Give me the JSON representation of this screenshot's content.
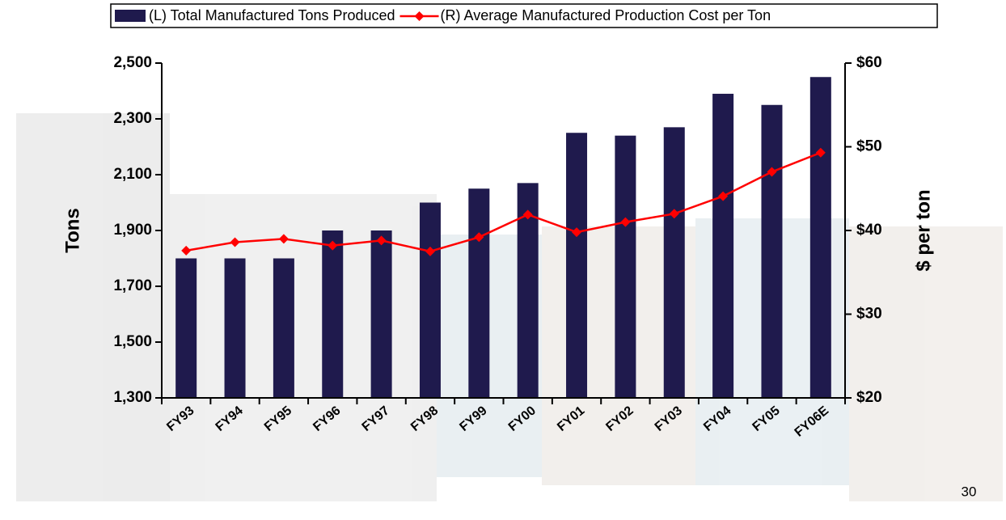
{
  "chart_data": {
    "type": "bar",
    "categories": [
      "FY93",
      "FY94",
      "FY95",
      "FY96",
      "FY97",
      "FY98",
      "FY99",
      "FY00",
      "FY01",
      "FY02",
      "FY03",
      "FY04",
      "FY05",
      "FY06E"
    ],
    "series": [
      {
        "name": "(L) Total Manufactured Tons Produced",
        "type": "bar",
        "color": "#1f1a4d",
        "values": [
          1800,
          1800,
          1800,
          1900,
          1900,
          2000,
          2050,
          2070,
          2250,
          2240,
          2270,
          2390,
          2350,
          2450
        ]
      },
      {
        "name": "(R) Average Manufactured Production Cost per Ton",
        "type": "line",
        "axis": "y2",
        "color": "#ff0000",
        "values": [
          37.6,
          38.6,
          39.0,
          38.2,
          38.8,
          37.5,
          39.2,
          41.9,
          39.8,
          41.0,
          42.0,
          44.1,
          47.0,
          49.3
        ]
      }
    ],
    "ylabel": "Tons",
    "y2label": "$ per ton",
    "ylim": [
      1300,
      2500
    ],
    "yticks": [
      {
        "value": 1300,
        "label": "1,300"
      },
      {
        "value": 1500,
        "label": "1,500"
      },
      {
        "value": 1700,
        "label": "1,700"
      },
      {
        "value": 1900,
        "label": "1,900"
      },
      {
        "value": 2100,
        "label": "2,100"
      },
      {
        "value": 2300,
        "label": "2,300"
      },
      {
        "value": 2500,
        "label": "2,500"
      }
    ],
    "y2lim": [
      20,
      60
    ],
    "y2ticks": [
      {
        "value": 20,
        "label": "$20"
      },
      {
        "value": 30,
        "label": "$30"
      },
      {
        "value": 40,
        "label": "$40"
      },
      {
        "value": 50,
        "label": "$50"
      },
      {
        "value": 60,
        "label": "$60"
      }
    ],
    "grid": false,
    "legend": "top"
  },
  "footer": {
    "page_number": "30"
  }
}
